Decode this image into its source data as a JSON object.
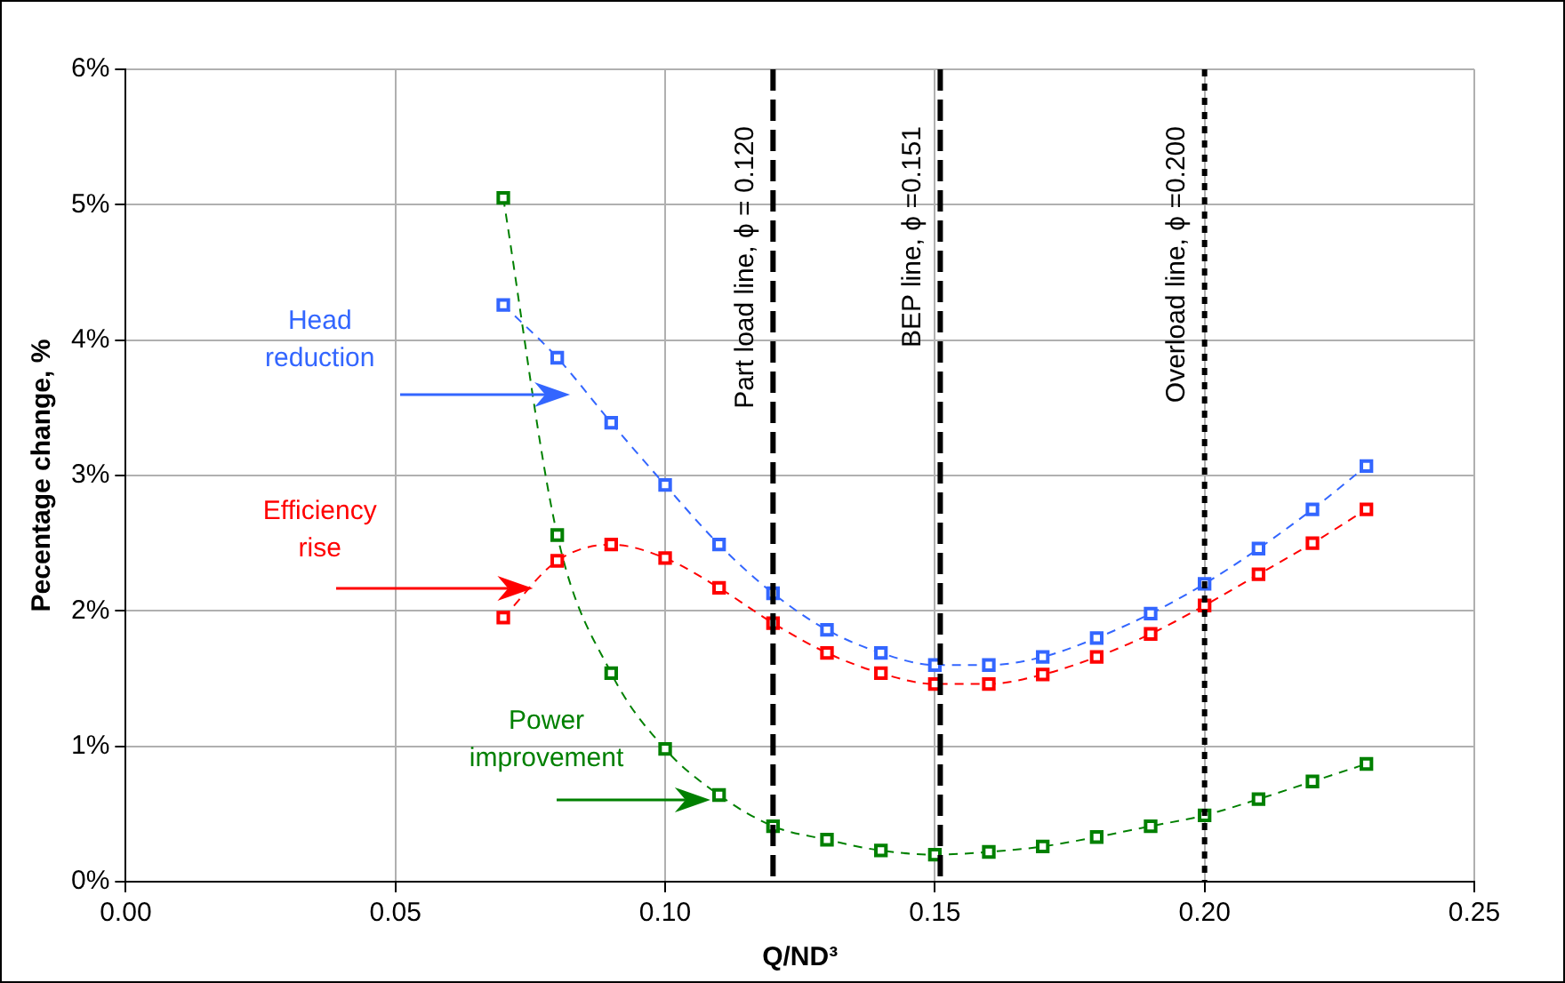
{
  "chart_data": {
    "type": "line",
    "xlabel": "Q/ND³",
    "ylabel": "Pecentage change, %",
    "x": [
      0.07,
      0.08,
      0.09,
      0.1,
      0.11,
      0.12,
      0.13,
      0.14,
      0.15,
      0.16,
      0.17,
      0.18,
      0.19,
      0.2,
      0.21,
      0.22,
      0.23
    ],
    "series": [
      {
        "name": "Head reduction",
        "color": "#3366ff",
        "values": [
          4.26,
          3.87,
          3.39,
          2.93,
          2.49,
          2.13,
          1.86,
          1.69,
          1.6,
          1.6,
          1.66,
          1.8,
          1.98,
          2.2,
          2.46,
          2.75,
          3.07
        ]
      },
      {
        "name": "Efficiency rise",
        "color": "#ff0000",
        "values": [
          1.95,
          2.37,
          2.49,
          2.39,
          2.17,
          1.91,
          1.69,
          1.54,
          1.46,
          1.46,
          1.53,
          1.66,
          1.83,
          2.04,
          2.27,
          2.5,
          2.75
        ]
      },
      {
        "name": "Power improvement",
        "color": "#008000",
        "values": [
          5.05,
          2.56,
          1.54,
          0.98,
          0.64,
          0.41,
          0.31,
          0.23,
          0.2,
          0.22,
          0.26,
          0.33,
          0.41,
          0.49,
          0.61,
          0.74,
          0.87
        ]
      }
    ],
    "xlim": [
      0,
      0.25
    ],
    "xticks": [
      {
        "value": 0,
        "label": "0.00"
      },
      {
        "value": 0.05,
        "label": "0.05"
      },
      {
        "value": 0.1,
        "label": "0.10"
      },
      {
        "value": 0.15,
        "label": "0.15"
      },
      {
        "value": 0.2,
        "label": "0.20"
      },
      {
        "value": 0.25,
        "label": "0.25"
      }
    ],
    "ylim": [
      0,
      6
    ],
    "yticks": [
      {
        "value": 0,
        "label": "0%"
      },
      {
        "value": 1,
        "label": "1%"
      },
      {
        "value": 2,
        "label": "2%"
      },
      {
        "value": 3,
        "label": "3%"
      },
      {
        "value": 4,
        "label": "4%"
      },
      {
        "value": 5,
        "label": "5%"
      },
      {
        "value": 6,
        "label": "6%"
      }
    ],
    "ref_lines": [
      {
        "axis": "x",
        "value": 0.12,
        "label": "Part load line, ϕ = 0.120",
        "color": "#000000",
        "line_style": "dashed"
      },
      {
        "axis": "x",
        "value": 0.151,
        "label": "BEP line, ϕ =0.151",
        "color": "#000000",
        "line_style": "dashed"
      },
      {
        "axis": "x",
        "value": 0.2,
        "label": "Overload line, ϕ =0.200",
        "color": "#000000",
        "line_style": "dotted"
      }
    ],
    "grid": true,
    "legend": false,
    "marker": "square",
    "line_style": "dashed"
  }
}
